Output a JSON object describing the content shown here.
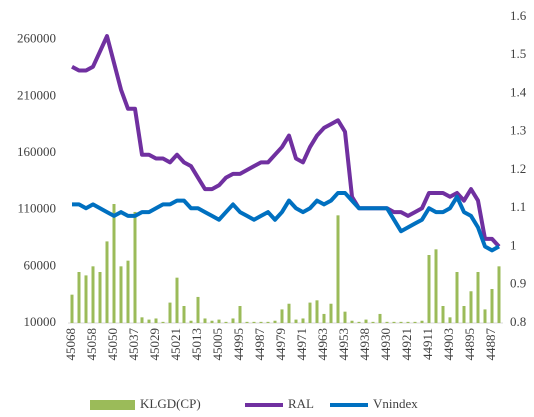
{
  "chart_data": {
    "type": "bar_line",
    "categories": [
      45068,
      null,
      null,
      45058,
      null,
      null,
      45050,
      null,
      null,
      45037,
      null,
      null,
      45029,
      null,
      null,
      45021,
      null,
      null,
      45013,
      null,
      null,
      45005,
      null,
      null,
      44995,
      null,
      null,
      44987,
      null,
      null,
      44979,
      null,
      null,
      44971,
      null,
      null,
      44963,
      null,
      null,
      44953,
      null,
      null,
      44938,
      null,
      null,
      44930,
      null,
      null,
      44921,
      null,
      null,
      44911,
      null,
      null,
      44903,
      null,
      null,
      44895,
      null,
      null,
      44887,
      null
    ],
    "series": [
      {
        "name": "KLGD(CP)",
        "color": "#9bbb59",
        "kind": "bar",
        "values": [
          35000,
          55000,
          52000,
          60000,
          55000,
          82000,
          115000,
          60000,
          65000,
          108000,
          15000,
          13000,
          14000,
          11000,
          28000,
          50000,
          25000,
          12000,
          33000,
          14000,
          12000,
          13000,
          11000,
          14000,
          25000,
          11000,
          11000,
          11000,
          11000,
          12000,
          22000,
          27000,
          13000,
          14000,
          28000,
          30000,
          18000,
          27000,
          105000,
          20000,
          12000,
          11000,
          13000,
          11000,
          18000,
          11000,
          11000,
          11000,
          11000,
          11000,
          12000,
          70000,
          75000,
          25000,
          15000,
          55000,
          25000,
          38000,
          55000,
          22000,
          40000,
          60000
        ]
      },
      {
        "name": "RAL",
        "color": "#7030a0",
        "kind": "line",
        "axis": "y2",
        "values": [
          1.47,
          1.46,
          1.46,
          1.47,
          1.51,
          1.55,
          1.48,
          1.41,
          1.36,
          1.36,
          1.24,
          1.24,
          1.23,
          1.23,
          1.22,
          1.24,
          1.22,
          1.21,
          1.18,
          1.15,
          1.15,
          1.16,
          1.18,
          1.19,
          1.19,
          1.2,
          1.21,
          1.22,
          1.22,
          1.24,
          1.26,
          1.29,
          1.23,
          1.22,
          1.26,
          1.29,
          1.31,
          1.32,
          1.33,
          1.3,
          1.13,
          1.1,
          1.1,
          1.1,
          1.1,
          1.1,
          1.09,
          1.09,
          1.08,
          1.09,
          1.1,
          1.14,
          1.14,
          1.14,
          1.13,
          1.14,
          1.12,
          1.15,
          1.12,
          1.02,
          1.02,
          1.0
        ]
      },
      {
        "name": "Vnindex",
        "color": "#0070c0",
        "kind": "line",
        "axis": "y2",
        "values": [
          1.11,
          1.11,
          1.1,
          1.11,
          1.1,
          1.09,
          1.08,
          1.09,
          1.08,
          1.08,
          1.09,
          1.09,
          1.1,
          1.11,
          1.11,
          1.12,
          1.12,
          1.1,
          1.1,
          1.09,
          1.08,
          1.07,
          1.09,
          1.11,
          1.09,
          1.08,
          1.07,
          1.08,
          1.09,
          1.07,
          1.09,
          1.12,
          1.1,
          1.09,
          1.1,
          1.12,
          1.11,
          1.12,
          1.14,
          1.14,
          1.12,
          1.1,
          1.1,
          1.1,
          1.1,
          1.1,
          1.07,
          1.04,
          1.05,
          1.06,
          1.07,
          1.1,
          1.09,
          1.09,
          1.1,
          1.13,
          1.09,
          1.08,
          1.05,
          1.0,
          0.99,
          1.0
        ]
      }
    ],
    "ylim": [
      10000,
      280000
    ],
    "yticks": [
      10000,
      60000,
      110000,
      160000,
      210000,
      260000
    ],
    "y2lim": [
      0.8,
      1.6
    ],
    "y2ticks": [
      0.8,
      0.9,
      1,
      1.1,
      1.2,
      1.3,
      1.4,
      1.5,
      1.6
    ],
    "legend": "bottom"
  }
}
